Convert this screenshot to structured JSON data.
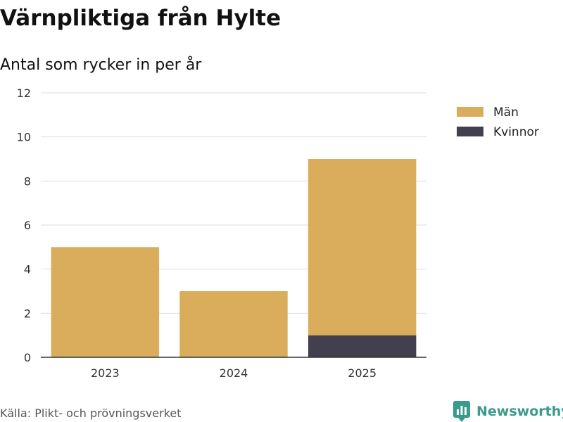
{
  "title": "Värnpliktiga från Hylte",
  "subtitle": "Antal som rycker in per år",
  "source": "Källa: Plikt- och prövningsverket",
  "brand": {
    "name": "Newsworthy",
    "color": "#3a9a8e",
    "icon": "newsworthy-logo-icon"
  },
  "colors": {
    "man": "#d9ad5b",
    "kvinnor": "#42404f",
    "grid": "#dddddd",
    "axis": "#333333"
  },
  "chart_data": {
    "type": "bar",
    "stacked": true,
    "categories": [
      "2023",
      "2024",
      "2025"
    ],
    "series": [
      {
        "name": "Kvinnor",
        "values": [
          0,
          0,
          1
        ],
        "color": "#42404f"
      },
      {
        "name": "Män",
        "values": [
          5,
          3,
          8
        ],
        "color": "#d9ad5b"
      }
    ],
    "legend": [
      {
        "name": "Män",
        "color": "#d9ad5b"
      },
      {
        "name": "Kvinnor",
        "color": "#42404f"
      }
    ],
    "legend_position": "right",
    "ylim": [
      0,
      12
    ],
    "yticks": [
      0,
      2,
      4,
      6,
      8,
      10,
      12
    ],
    "grid": true,
    "xlabel": "",
    "ylabel": ""
  }
}
